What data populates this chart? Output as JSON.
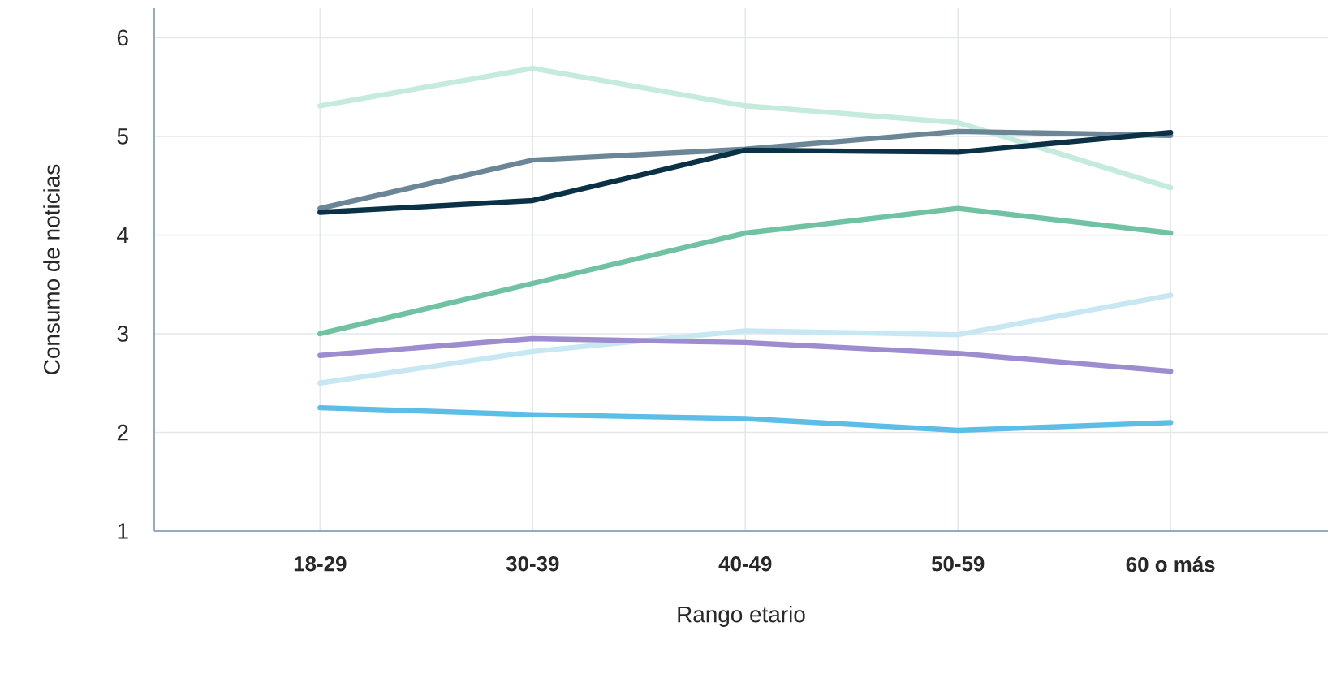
{
  "chart_data": {
    "type": "line",
    "xlabel": "Rango etario",
    "ylabel": "Consumo de noticias",
    "categories": [
      "18-29",
      "30-39",
      "40-49",
      "50-59",
      "60 o más"
    ],
    "ylim": [
      1,
      6.3
    ],
    "yticks": [
      1,
      2,
      3,
      4,
      5,
      6
    ],
    "grid": true,
    "marker": "none",
    "line_style": "solid",
    "series": [
      {
        "color": "#c4ebdc",
        "values": [
          5.31,
          5.69,
          5.31,
          5.14,
          4.48
        ]
      },
      {
        "color": "#6b8797",
        "values": [
          4.27,
          4.76,
          4.87,
          5.05,
          5.01
        ]
      },
      {
        "color": "#0b3147",
        "values": [
          4.23,
          4.35,
          4.86,
          4.84,
          5.04
        ]
      },
      {
        "color": "#70c2a3",
        "values": [
          3.0,
          3.51,
          4.02,
          4.27,
          4.02
        ]
      },
      {
        "color": "#c7e7f2",
        "values": [
          2.5,
          2.82,
          3.03,
          2.99,
          3.39
        ]
      },
      {
        "color": "#9d8ccf",
        "values": [
          2.78,
          2.95,
          2.91,
          2.8,
          2.62
        ]
      },
      {
        "color": "#5cbde6",
        "values": [
          2.25,
          2.18,
          2.14,
          2.02,
          2.1
        ]
      }
    ]
  }
}
